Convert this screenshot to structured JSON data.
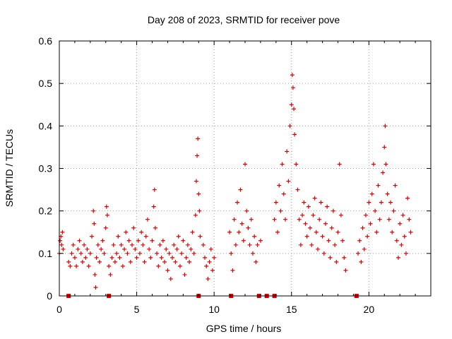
{
  "chart_data": {
    "type": "scatter",
    "title": "Day 208 of 2023, SRMTID for receiver pove",
    "xlabel": "GPS time / hours",
    "ylabel": "SRMTID / TECUs",
    "xlim": [
      0,
      24
    ],
    "ylim": [
      0,
      0.6
    ],
    "grid": true,
    "x_ticks": [
      0,
      5,
      10,
      15,
      20
    ],
    "y_ticks": [
      0,
      0.1,
      0.2,
      0.3,
      0.4,
      0.5,
      0.6
    ],
    "marker": "plus",
    "color": "#e00000",
    "gap_markers_x": [
      0.6,
      3.2,
      9.0,
      11.1,
      12.9,
      13.4,
      13.9,
      19.2
    ],
    "series": [
      {
        "name": "SRMTID",
        "points": [
          [
            0.0,
            0.1
          ],
          [
            0.05,
            0.13
          ],
          [
            0.1,
            0.14
          ],
          [
            0.15,
            0.12
          ],
          [
            0.2,
            0.15
          ],
          [
            0.25,
            0.11
          ],
          [
            0.6,
            0.08
          ],
          [
            0.7,
            0.07
          ],
          [
            0.8,
            0.1
          ],
          [
            0.9,
            0.12
          ],
          [
            1.0,
            0.09
          ],
          [
            1.1,
            0.07
          ],
          [
            1.2,
            0.11
          ],
          [
            1.3,
            0.13
          ],
          [
            1.4,
            0.1
          ],
          [
            1.5,
            0.08
          ],
          [
            1.6,
            0.12
          ],
          [
            1.7,
            0.09
          ],
          [
            1.8,
            0.11
          ],
          [
            1.9,
            0.07
          ],
          [
            2.0,
            0.1
          ],
          [
            2.1,
            0.14
          ],
          [
            2.2,
            0.2
          ],
          [
            2.25,
            0.17
          ],
          [
            2.3,
            0.05
          ],
          [
            2.35,
            0.02
          ],
          [
            2.4,
            0.09
          ],
          [
            2.5,
            0.12
          ],
          [
            2.6,
            0.08
          ],
          [
            2.7,
            0.11
          ],
          [
            2.8,
            0.13
          ],
          [
            2.9,
            0.1
          ],
          [
            3.0,
            0.16
          ],
          [
            3.05,
            0.21
          ],
          [
            3.1,
            0.19
          ],
          [
            3.2,
            0.07
          ],
          [
            3.3,
            0.05
          ],
          [
            3.4,
            0.09
          ],
          [
            3.5,
            0.12
          ],
          [
            3.6,
            0.08
          ],
          [
            3.7,
            0.1
          ],
          [
            3.8,
            0.14
          ],
          [
            3.9,
            0.09
          ],
          [
            4.0,
            0.12
          ],
          [
            4.1,
            0.07
          ],
          [
            4.2,
            0.11
          ],
          [
            4.3,
            0.15
          ],
          [
            4.4,
            0.1
          ],
          [
            4.5,
            0.13
          ],
          [
            4.6,
            0.08
          ],
          [
            4.7,
            0.12
          ],
          [
            4.8,
            0.16
          ],
          [
            4.9,
            0.11
          ],
          [
            5.0,
            0.09
          ],
          [
            5.1,
            0.13
          ],
          [
            5.2,
            0.1
          ],
          [
            5.3,
            0.15
          ],
          [
            5.4,
            0.12
          ],
          [
            5.5,
            0.08
          ],
          [
            5.6,
            0.14
          ],
          [
            5.7,
            0.18
          ],
          [
            5.8,
            0.11
          ],
          [
            5.9,
            0.09
          ],
          [
            6.0,
            0.13
          ],
          [
            6.1,
            0.21
          ],
          [
            6.15,
            0.25
          ],
          [
            6.2,
            0.16
          ],
          [
            6.3,
            0.1
          ],
          [
            6.4,
            0.07
          ],
          [
            6.5,
            0.12
          ],
          [
            6.6,
            0.09
          ],
          [
            6.7,
            0.13
          ],
          [
            6.8,
            0.08
          ],
          [
            6.9,
            0.11
          ],
          [
            7.0,
            0.06
          ],
          [
            7.1,
            0.1
          ],
          [
            7.2,
            0.04
          ],
          [
            7.3,
            0.09
          ],
          [
            7.4,
            0.12
          ],
          [
            7.5,
            0.08
          ],
          [
            7.6,
            0.11
          ],
          [
            7.7,
            0.14
          ],
          [
            7.8,
            0.07
          ],
          [
            7.9,
            0.1
          ],
          [
            8.0,
            0.13
          ],
          [
            8.1,
            0.05
          ],
          [
            8.2,
            0.09
          ],
          [
            8.3,
            0.12
          ],
          [
            8.4,
            0.08
          ],
          [
            8.5,
            0.11
          ],
          [
            8.6,
            0.15
          ],
          [
            8.7,
            0.1
          ],
          [
            8.8,
            0.19
          ],
          [
            8.85,
            0.27
          ],
          [
            8.9,
            0.33
          ],
          [
            8.95,
            0.37
          ],
          [
            9.0,
            0.24
          ],
          [
            9.05,
            0.2
          ],
          [
            9.1,
            0.14
          ],
          [
            9.3,
            0.12
          ],
          [
            9.4,
            0.09
          ],
          [
            9.5,
            0.07
          ],
          [
            9.6,
            0.04
          ],
          [
            9.7,
            0.08
          ],
          [
            9.8,
            0.11
          ],
          [
            9.9,
            0.06
          ],
          [
            10.0,
            0.09
          ],
          [
            11.0,
            0.15
          ],
          [
            11.1,
            0.1
          ],
          [
            11.2,
            0.06
          ],
          [
            11.3,
            0.18
          ],
          [
            11.4,
            0.12
          ],
          [
            11.5,
            0.22
          ],
          [
            11.6,
            0.15
          ],
          [
            11.7,
            0.25
          ],
          [
            11.8,
            0.17
          ],
          [
            11.9,
            0.13
          ],
          [
            12.0,
            0.31
          ],
          [
            12.1,
            0.2
          ],
          [
            12.2,
            0.16
          ],
          [
            12.3,
            0.12
          ],
          [
            12.4,
            0.18
          ],
          [
            12.5,
            0.1
          ],
          [
            12.6,
            0.14
          ],
          [
            12.7,
            0.08
          ],
          [
            12.8,
            0.12
          ],
          [
            13.0,
            0.13
          ],
          [
            13.9,
            0.18
          ],
          [
            14.0,
            0.22
          ],
          [
            14.1,
            0.15
          ],
          [
            14.2,
            0.26
          ],
          [
            14.3,
            0.2
          ],
          [
            14.4,
            0.31
          ],
          [
            14.5,
            0.24
          ],
          [
            14.6,
            0.18
          ],
          [
            14.7,
            0.34
          ],
          [
            14.8,
            0.27
          ],
          [
            14.9,
            0.4
          ],
          [
            15.0,
            0.45
          ],
          [
            15.05,
            0.52
          ],
          [
            15.1,
            0.49
          ],
          [
            15.15,
            0.44
          ],
          [
            15.2,
            0.38
          ],
          [
            15.3,
            0.31
          ],
          [
            15.4,
            0.25
          ],
          [
            15.5,
            0.18
          ],
          [
            15.6,
            0.12
          ],
          [
            15.7,
            0.19
          ],
          [
            15.8,
            0.22
          ],
          [
            15.9,
            0.17
          ],
          [
            16.0,
            0.14
          ],
          [
            16.1,
            0.21
          ],
          [
            16.2,
            0.16
          ],
          [
            16.3,
            0.12
          ],
          [
            16.4,
            0.19
          ],
          [
            16.5,
            0.23
          ],
          [
            16.6,
            0.15
          ],
          [
            16.7,
            0.11
          ],
          [
            16.8,
            0.18
          ],
          [
            16.9,
            0.22
          ],
          [
            17.0,
            0.14
          ],
          [
            17.1,
            0.1
          ],
          [
            17.2,
            0.17
          ],
          [
            17.3,
            0.21
          ],
          [
            17.4,
            0.13
          ],
          [
            17.5,
            0.09
          ],
          [
            17.6,
            0.16
          ],
          [
            17.7,
            0.2
          ],
          [
            17.8,
            0.12
          ],
          [
            17.9,
            0.08
          ],
          [
            18.0,
            0.15
          ],
          [
            18.1,
            0.31
          ],
          [
            18.2,
            0.19
          ],
          [
            18.3,
            0.13
          ],
          [
            18.4,
            0.09
          ],
          [
            18.5,
            0.06
          ],
          [
            19.3,
            0.1
          ],
          [
            19.4,
            0.13
          ],
          [
            19.5,
            0.08
          ],
          [
            19.6,
            0.16
          ],
          [
            19.7,
            0.11
          ],
          [
            19.8,
            0.19
          ],
          [
            19.9,
            0.14
          ],
          [
            20.0,
            0.22
          ],
          [
            20.1,
            0.17
          ],
          [
            20.2,
            0.24
          ],
          [
            20.3,
            0.31
          ],
          [
            20.4,
            0.2
          ],
          [
            20.5,
            0.15
          ],
          [
            20.6,
            0.26
          ],
          [
            20.7,
            0.18
          ],
          [
            20.8,
            0.22
          ],
          [
            20.9,
            0.29
          ],
          [
            21.0,
            0.35
          ],
          [
            21.05,
            0.4
          ],
          [
            21.1,
            0.31
          ],
          [
            21.2,
            0.24
          ],
          [
            21.3,
            0.18
          ],
          [
            21.4,
            0.22
          ],
          [
            21.5,
            0.15
          ],
          [
            21.6,
            0.2
          ],
          [
            21.7,
            0.26
          ],
          [
            21.8,
            0.13
          ],
          [
            21.9,
            0.09
          ],
          [
            22.0,
            0.17
          ],
          [
            22.1,
            0.12
          ],
          [
            22.2,
            0.19
          ],
          [
            22.3,
            0.14
          ],
          [
            22.4,
            0.1
          ],
          [
            22.5,
            0.23
          ],
          [
            22.6,
            0.18
          ],
          [
            22.7,
            0.15
          ]
        ]
      }
    ]
  }
}
